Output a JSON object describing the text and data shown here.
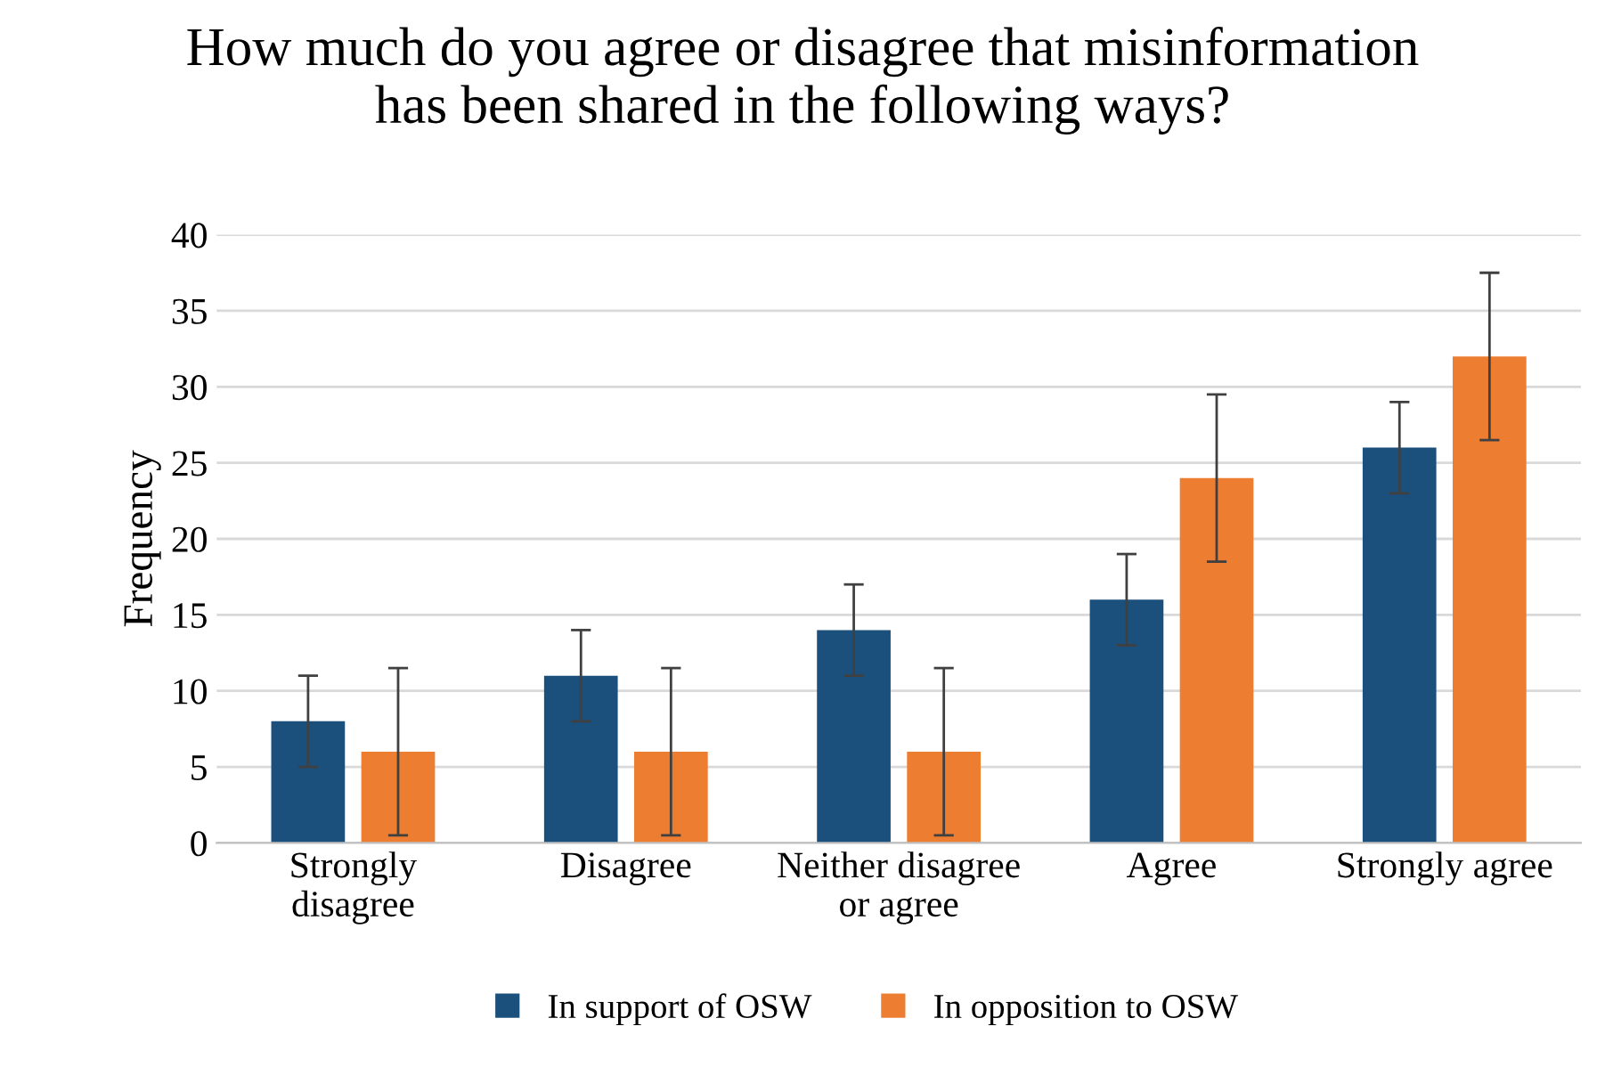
{
  "chart_data": {
    "type": "bar",
    "title": "How much do you agree or disagree that misinformation\nhas been shared in the following ways?",
    "ylabel": "Frequency",
    "categories": [
      "Strongly\ndisagree",
      "Disagree",
      "Neither disagree\nor agree",
      "Agree",
      "Strongly agree"
    ],
    "series": [
      {
        "name": "In support of OSW",
        "color": "#1b4f7c",
        "values": [
          8,
          11,
          14,
          16,
          26
        ],
        "errors": [
          3,
          3,
          3,
          3,
          3
        ]
      },
      {
        "name": "In opposition to OSW",
        "color": "#ed7d31",
        "values": [
          6,
          6,
          6,
          24,
          32
        ],
        "errors": [
          5.5,
          5.5,
          5.5,
          5.5,
          5.5
        ]
      }
    ],
    "ylim": [
      0,
      40
    ],
    "yticks": [
      0,
      5,
      10,
      15,
      20,
      25,
      30,
      35,
      40
    ],
    "grid": "y",
    "legend": "bottom"
  }
}
